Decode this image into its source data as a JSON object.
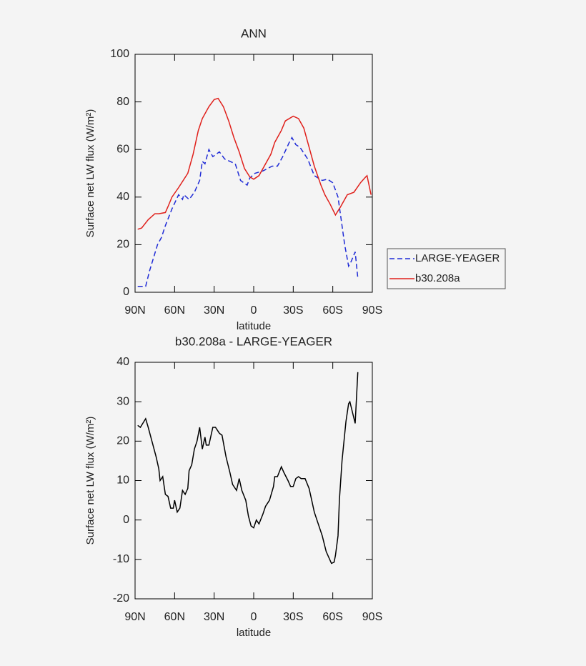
{
  "chart_data": [
    {
      "type": "line",
      "title": "ANN",
      "xlabel": "latitude",
      "ylabel": "Surface net LW flux (W/m²)",
      "xlim": [
        90,
        -90
      ],
      "xticks": [
        {
          "value": 90,
          "label": "90N"
        },
        {
          "value": 60,
          "label": "60N"
        },
        {
          "value": 30,
          "label": "30N"
        },
        0,
        {
          "value": -30,
          "label": "30S"
        },
        {
          "value": -60,
          "label": "60S"
        },
        {
          "value": -90,
          "label": "90S"
        }
      ],
      "ylim": [
        0,
        100
      ],
      "yticks": [
        0,
        20,
        40,
        60,
        80,
        100
      ],
      "legend": "right",
      "series": [
        {
          "name": "LARGE-YEAGER",
          "color": "#1f2bd6",
          "linestyle": "dashed",
          "x": [
            88,
            82,
            79,
            73,
            70,
            67,
            62,
            57,
            54,
            53,
            49,
            45,
            41,
            39,
            37,
            34,
            31,
            26,
            22,
            14,
            10,
            5,
            3,
            -1,
            -7,
            -14,
            -18,
            -22,
            -27,
            -29,
            -32,
            -35,
            -41,
            -46,
            -52,
            -56,
            -60,
            -64,
            -67,
            -69,
            -72,
            -74,
            -77,
            -79
          ],
          "values": [
            2.5,
            2.5,
            9,
            20,
            23,
            28,
            35,
            41,
            39,
            41,
            39,
            42,
            47,
            55,
            54,
            60,
            57,
            59,
            56,
            54,
            47,
            45,
            48,
            50,
            51,
            53,
            53,
            57,
            63,
            65,
            62,
            61,
            56,
            49,
            47,
            47.5,
            46,
            40,
            28,
            20,
            11,
            13,
            17,
            6
          ]
        },
        {
          "name": "b30.208a",
          "color": "#e0201b",
          "linestyle": "solid",
          "x": [
            88,
            85,
            80,
            75,
            72,
            67,
            65,
            62,
            57,
            50,
            46,
            42,
            39,
            34,
            30,
            27,
            23,
            19,
            15,
            11,
            7,
            3,
            0,
            -4,
            -8,
            -13,
            -16,
            -21,
            -24,
            -30,
            -34,
            -38,
            -42,
            -46,
            -51,
            -54,
            -58,
            -62,
            -66,
            -71,
            -76,
            -81,
            -85,
            -86,
            -89
          ],
          "values": [
            26.5,
            27,
            30.5,
            33,
            33,
            33.5,
            36,
            40,
            44,
            50,
            58,
            68,
            73,
            78,
            81,
            81.5,
            78,
            72,
            65,
            59,
            52,
            48.5,
            47.5,
            49,
            53,
            58,
            63,
            68,
            72,
            74,
            73,
            69,
            61,
            53,
            45,
            41,
            37,
            32.5,
            36,
            41,
            42,
            46,
            48.5,
            49,
            41
          ]
        }
      ]
    },
    {
      "type": "line",
      "title": "b30.208a - LARGE-YEAGER",
      "xlabel": "latitude",
      "ylabel": "Surface net LW flux (W/m²)",
      "xlim": [
        90,
        -90
      ],
      "xticks": [
        {
          "value": 90,
          "label": "90N"
        },
        {
          "value": 60,
          "label": "60N"
        },
        {
          "value": 30,
          "label": "30N"
        },
        0,
        {
          "value": -30,
          "label": "30S"
        },
        {
          "value": -60,
          "label": "60S"
        },
        {
          "value": -90,
          "label": "90S"
        }
      ],
      "ylim": [
        -20,
        40
      ],
      "yticks": [
        -20,
        -10,
        0,
        10,
        20,
        30,
        40
      ],
      "color": "#000000",
      "x": [
        88,
        86,
        82,
        80,
        78,
        74,
        72,
        71,
        69,
        67,
        65,
        63,
        61,
        60,
        58,
        56,
        54,
        52,
        50,
        49,
        47,
        45,
        43,
        41,
        39,
        37,
        36,
        34,
        31,
        29,
        26,
        24,
        21,
        18,
        16,
        13,
        11,
        9,
        6,
        4,
        2,
        0,
        -2,
        -4,
        -7,
        -9,
        -12,
        -15,
        -16,
        -18,
        -21,
        -23,
        -26,
        -28,
        -30,
        -32,
        -34,
        -36,
        -39,
        -42,
        -44,
        -46,
        -48,
        -52,
        -55,
        -59,
        -61,
        -62,
        -64,
        -65,
        -67,
        -70,
        -72,
        -73,
        -77,
        -79
      ],
      "values": [
        24,
        23.5,
        25.7,
        23.5,
        21,
        16,
        13,
        10,
        11,
        6.5,
        6,
        3,
        3,
        5,
        2,
        3,
        7.5,
        6.5,
        8,
        12.5,
        14,
        18,
        20,
        23.5,
        18,
        21,
        19,
        19,
        23.5,
        23.5,
        22,
        21.5,
        16,
        12,
        9,
        7.5,
        10.5,
        7.5,
        5,
        1,
        -1.5,
        -2,
        0,
        -1,
        1.5,
        3.5,
        5,
        8.5,
        11,
        11,
        13.5,
        12,
        10,
        8.5,
        8.5,
        10.5,
        11,
        10.5,
        10.5,
        8,
        5,
        2,
        0,
        -4,
        -8,
        -11,
        -10.7,
        -9,
        -4,
        5,
        15,
        25,
        29.5,
        30,
        24.5,
        37.5
      ]
    }
  ]
}
